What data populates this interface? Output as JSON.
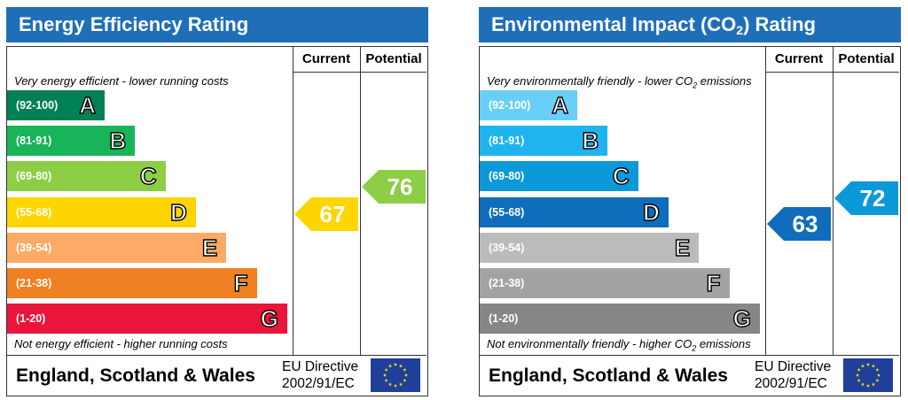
{
  "chart_data": [
    {
      "type": "bar",
      "title": "Energy Efficiency Rating",
      "columns": [
        "Current",
        "Potential"
      ],
      "top_caption": "Very energy efficient - lower running costs",
      "bottom_caption": "Not energy efficient - higher running costs",
      "categories": [
        "A",
        "B",
        "C",
        "D",
        "E",
        "F",
        "G"
      ],
      "bands": [
        {
          "letter": "A",
          "range": "(92-100)",
          "color": "#008054"
        },
        {
          "letter": "B",
          "range": "(81-91)",
          "color": "#19b459"
        },
        {
          "letter": "C",
          "range": "(69-80)",
          "color": "#8dce46"
        },
        {
          "letter": "D",
          "range": "(55-68)",
          "color": "#ffd500"
        },
        {
          "letter": "E",
          "range": "(39-54)",
          "color": "#fcaa65"
        },
        {
          "letter": "F",
          "range": "(21-38)",
          "color": "#ef8023"
        },
        {
          "letter": "G",
          "range": "(1-20)",
          "color": "#e9153b"
        }
      ],
      "current": {
        "value": "67",
        "color": "#ffd500"
      },
      "potential": {
        "value": "76",
        "color": "#8dce46"
      },
      "footer": {
        "region": "England, Scotland & Wales",
        "directive_line1": "EU Directive",
        "directive_line2": "2002/91/EC"
      }
    },
    {
      "type": "bar",
      "title_pre": "Environmental Impact (CO",
      "title_sub": "2",
      "title_post": ") Rating",
      "columns": [
        "Current",
        "Potential"
      ],
      "top_caption_pre": "Very environmentally friendly - lower CO",
      "top_caption_sub": "2",
      "top_caption_post": " emissions",
      "bottom_caption_pre": "Not environmentally friendly - higher CO",
      "bottom_caption_sub": "2",
      "bottom_caption_post": " emissions",
      "categories": [
        "A",
        "B",
        "C",
        "D",
        "E",
        "F",
        "G"
      ],
      "bands": [
        {
          "letter": "A",
          "range": "(92-100)",
          "color": "#6acff6"
        },
        {
          "letter": "B",
          "range": "(81-91)",
          "color": "#1fb4f0"
        },
        {
          "letter": "C",
          "range": "(69-80)",
          "color": "#0c99d9"
        },
        {
          "letter": "D",
          "range": "(55-68)",
          "color": "#0f6dbb"
        },
        {
          "letter": "E",
          "range": "(39-54)",
          "color": "#bbbbbb"
        },
        {
          "letter": "F",
          "range": "(21-38)",
          "color": "#a3a3a3"
        },
        {
          "letter": "G",
          "range": "(1-20)",
          "color": "#868686"
        }
      ],
      "current": {
        "value": "63",
        "color": "#0f6dbb"
      },
      "potential": {
        "value": "72",
        "color": "#0c99d9"
      },
      "footer": {
        "region": "England, Scotland & Wales",
        "directive_line1": "EU Directive",
        "directive_line2": "2002/91/EC"
      }
    }
  ]
}
